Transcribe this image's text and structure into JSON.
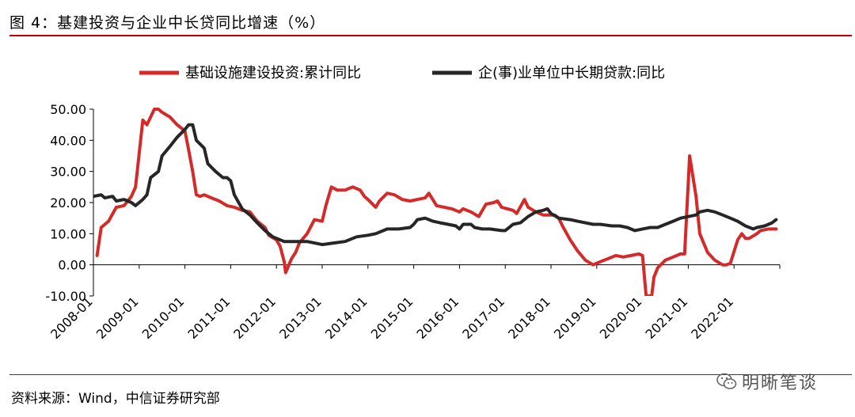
{
  "header": {
    "title": "图 4：基建投资与企业中长贷同比增速（%）"
  },
  "footer": {
    "source": "资料来源：Wind，中信证券研究部"
  },
  "watermark": {
    "text": "明晰笔谈",
    "icon": "wechat-icon"
  },
  "colors": {
    "series_infra": "#d42a2a",
    "series_loans": "#262626",
    "accent": "#c00000"
  },
  "chart_data": {
    "type": "line",
    "title": "图 4：基建投资与企业中长贷同比增速（%）",
    "xlabel": "",
    "ylabel": "",
    "ylim": [
      -10,
      50
    ],
    "yticks": [
      "50.00",
      "40.00",
      "30.00",
      "20.00",
      "10.00",
      "0.00",
      "-10.00"
    ],
    "ytick_values": [
      50,
      40,
      30,
      20,
      10,
      0,
      -10
    ],
    "xticks": [
      "2008-01",
      "2009-01",
      "2010-01",
      "2011-01",
      "2012-01",
      "2013-01",
      "2014-01",
      "2015-01",
      "2016-01",
      "2017-01",
      "2018-01",
      "2019-01",
      "2020-01",
      "2021-01",
      "2022-01"
    ],
    "xrange": [
      2008.0,
      2023.0
    ],
    "legend_position": "top",
    "series": [
      {
        "name": "基础设施建设投资:累计同比",
        "color": "#d42a2a",
        "points": [
          [
            2008.08,
            3
          ],
          [
            2008.17,
            12
          ],
          [
            2008.33,
            14
          ],
          [
            2008.5,
            18.5
          ],
          [
            2008.67,
            19
          ],
          [
            2008.83,
            22
          ],
          [
            2008.92,
            25
          ],
          [
            2009.08,
            46.5
          ],
          [
            2009.17,
            45
          ],
          [
            2009.25,
            47.5
          ],
          [
            2009.33,
            50
          ],
          [
            2009.42,
            50
          ],
          [
            2009.5,
            49
          ],
          [
            2009.67,
            47.5
          ],
          [
            2009.83,
            45
          ],
          [
            2010.0,
            43
          ],
          [
            2010.08,
            37
          ],
          [
            2010.17,
            30
          ],
          [
            2010.25,
            22.5
          ],
          [
            2010.33,
            22
          ],
          [
            2010.42,
            22.5
          ],
          [
            2010.58,
            21.5
          ],
          [
            2010.75,
            20.5
          ],
          [
            2010.92,
            19
          ],
          [
            2011.08,
            18.5
          ],
          [
            2011.25,
            17.5
          ],
          [
            2011.42,
            17
          ],
          [
            2011.58,
            14
          ],
          [
            2011.75,
            12
          ],
          [
            2011.83,
            9.5
          ],
          [
            2012.0,
            8
          ],
          [
            2012.08,
            6
          ],
          [
            2012.17,
            1
          ],
          [
            2012.2,
            -2.5
          ],
          [
            2012.33,
            2
          ],
          [
            2012.42,
            4
          ],
          [
            2012.5,
            7
          ],
          [
            2012.67,
            10
          ],
          [
            2012.83,
            14.5
          ],
          [
            2013.0,
            14
          ],
          [
            2013.08,
            19
          ],
          [
            2013.2,
            25
          ],
          [
            2013.33,
            24
          ],
          [
            2013.5,
            24
          ],
          [
            2013.58,
            24.5
          ],
          [
            2013.67,
            25
          ],
          [
            2013.83,
            24
          ],
          [
            2013.92,
            22
          ],
          [
            2014.0,
            21
          ],
          [
            2014.17,
            18.5
          ],
          [
            2014.25,
            20.5
          ],
          [
            2014.42,
            23
          ],
          [
            2014.58,
            22.5
          ],
          [
            2014.75,
            21
          ],
          [
            2014.92,
            20.5
          ],
          [
            2015.08,
            21
          ],
          [
            2015.25,
            21.5
          ],
          [
            2015.33,
            23
          ],
          [
            2015.5,
            19
          ],
          [
            2015.67,
            18.5
          ],
          [
            2015.83,
            18
          ],
          [
            2016.0,
            17
          ],
          [
            2016.08,
            18
          ],
          [
            2016.25,
            17
          ],
          [
            2016.42,
            15.5
          ],
          [
            2016.58,
            19.5
          ],
          [
            2016.75,
            20
          ],
          [
            2016.83,
            20.5
          ],
          [
            2016.92,
            18.5
          ],
          [
            2017.17,
            17.5
          ],
          [
            2017.25,
            16.5
          ],
          [
            2017.42,
            21
          ],
          [
            2017.5,
            18.5
          ],
          [
            2017.67,
            17
          ],
          [
            2017.83,
            16
          ],
          [
            2018.0,
            16
          ],
          [
            2018.08,
            16
          ],
          [
            2018.17,
            15
          ],
          [
            2018.25,
            12.5
          ],
          [
            2018.42,
            8
          ],
          [
            2018.58,
            4.5
          ],
          [
            2018.75,
            1.5
          ],
          [
            2018.92,
            0
          ],
          [
            2019.08,
            1
          ],
          [
            2019.25,
            2
          ],
          [
            2019.42,
            3
          ],
          [
            2019.58,
            2.5
          ],
          [
            2019.75,
            3
          ],
          [
            2019.92,
            3.5
          ],
          [
            2020.0,
            3
          ],
          [
            2020.08,
            -10
          ],
          [
            2020.1,
            -10
          ],
          [
            2020.2,
            -10
          ],
          [
            2020.25,
            -4
          ],
          [
            2020.33,
            -1
          ],
          [
            2020.5,
            1.5
          ],
          [
            2020.67,
            2.5
          ],
          [
            2020.83,
            3.5
          ],
          [
            2020.92,
            3.5
          ],
          [
            2021.03,
            35
          ],
          [
            2021.17,
            22
          ],
          [
            2021.25,
            10
          ],
          [
            2021.42,
            4
          ],
          [
            2021.58,
            1.5
          ],
          [
            2021.75,
            0
          ],
          [
            2021.83,
            0
          ],
          [
            2021.92,
            0.5
          ],
          [
            2022.08,
            8
          ],
          [
            2022.17,
            10
          ],
          [
            2022.25,
            8.5
          ],
          [
            2022.33,
            8.5
          ],
          [
            2022.5,
            10
          ],
          [
            2022.58,
            11
          ],
          [
            2022.75,
            11.5
          ],
          [
            2022.92,
            11.5
          ]
        ]
      },
      {
        "name": "企(事)业单位中长期贷款:同比",
        "color": "#262626",
        "points": [
          [
            2008.0,
            22
          ],
          [
            2008.17,
            22.5
          ],
          [
            2008.25,
            21.5
          ],
          [
            2008.42,
            22
          ],
          [
            2008.5,
            20.5
          ],
          [
            2008.67,
            21
          ],
          [
            2008.83,
            20
          ],
          [
            2008.92,
            19
          ],
          [
            2009.08,
            21
          ],
          [
            2009.17,
            22.5
          ],
          [
            2009.25,
            28
          ],
          [
            2009.42,
            30
          ],
          [
            2009.5,
            35
          ],
          [
            2009.67,
            38
          ],
          [
            2009.83,
            41
          ],
          [
            2010.0,
            43.5
          ],
          [
            2010.08,
            45
          ],
          [
            2010.17,
            45
          ],
          [
            2010.25,
            40
          ],
          [
            2010.42,
            37.5
          ],
          [
            2010.5,
            32.5
          ],
          [
            2010.67,
            30
          ],
          [
            2010.83,
            28
          ],
          [
            2010.92,
            28
          ],
          [
            2011.0,
            27
          ],
          [
            2011.08,
            22.5
          ],
          [
            2011.25,
            18
          ],
          [
            2011.42,
            16
          ],
          [
            2011.58,
            13.5
          ],
          [
            2011.75,
            11
          ],
          [
            2011.92,
            9
          ],
          [
            2012.0,
            8.5
          ],
          [
            2012.17,
            7.5
          ],
          [
            2012.33,
            7.5
          ],
          [
            2012.5,
            7.5
          ],
          [
            2012.67,
            7.5
          ],
          [
            2012.83,
            7
          ],
          [
            2013.0,
            6.5
          ],
          [
            2013.25,
            7
          ],
          [
            2013.5,
            7.5
          ],
          [
            2013.75,
            9
          ],
          [
            2014.0,
            9.5
          ],
          [
            2014.17,
            10
          ],
          [
            2014.42,
            11.5
          ],
          [
            2014.67,
            11.5
          ],
          [
            2014.92,
            12
          ],
          [
            2015.0,
            13
          ],
          [
            2015.08,
            14.5
          ],
          [
            2015.25,
            15
          ],
          [
            2015.42,
            14
          ],
          [
            2015.58,
            13.5
          ],
          [
            2015.75,
            13
          ],
          [
            2015.92,
            12.5
          ],
          [
            2016.0,
            11.5
          ],
          [
            2016.08,
            13
          ],
          [
            2016.25,
            13
          ],
          [
            2016.33,
            12
          ],
          [
            2016.5,
            11.5
          ],
          [
            2016.67,
            11.5
          ],
          [
            2016.92,
            11
          ],
          [
            2017.0,
            11
          ],
          [
            2017.17,
            13
          ],
          [
            2017.33,
            13.5
          ],
          [
            2017.5,
            15.5
          ],
          [
            2017.67,
            17
          ],
          [
            2017.83,
            17.5
          ],
          [
            2017.92,
            18
          ],
          [
            2018.0,
            16.5
          ],
          [
            2018.17,
            15
          ],
          [
            2018.42,
            14.5
          ],
          [
            2018.58,
            14
          ],
          [
            2018.75,
            13.5
          ],
          [
            2018.92,
            13
          ],
          [
            2019.08,
            13
          ],
          [
            2019.33,
            12.5
          ],
          [
            2019.5,
            12.5
          ],
          [
            2019.67,
            12
          ],
          [
            2019.83,
            11
          ],
          [
            2020.0,
            11.5
          ],
          [
            2020.17,
            12
          ],
          [
            2020.33,
            12
          ],
          [
            2020.5,
            13
          ],
          [
            2020.67,
            14
          ],
          [
            2020.83,
            15
          ],
          [
            2021.0,
            15.5
          ],
          [
            2021.17,
            16
          ],
          [
            2021.25,
            17
          ],
          [
            2021.42,
            17.5
          ],
          [
            2021.58,
            17
          ],
          [
            2021.75,
            16
          ],
          [
            2021.92,
            15
          ],
          [
            2022.08,
            14
          ],
          [
            2022.25,
            12.5
          ],
          [
            2022.42,
            11.5
          ],
          [
            2022.5,
            12
          ],
          [
            2022.67,
            12.5
          ],
          [
            2022.83,
            13.5
          ],
          [
            2022.92,
            14.5
          ]
        ]
      }
    ]
  }
}
